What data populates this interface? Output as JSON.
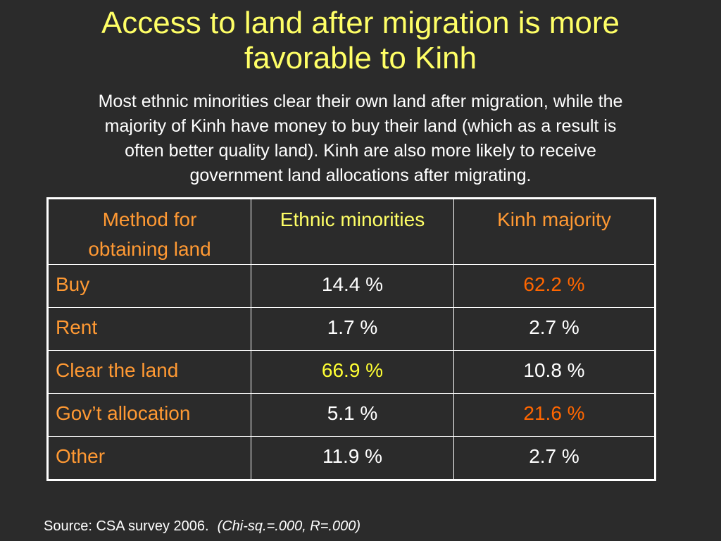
{
  "title": {
    "line1": "Access to land after migration is more",
    "line2": "favorable to Kinh"
  },
  "subtitle": {
    "line1": "Most ethnic minorities clear their own land after migration, while the",
    "line2": "majority of Kinh have money to buy their land (which as a result is",
    "line3": "often better quality land).  Kinh are also more likely to receive",
    "line4": "government land allocations after migrating."
  },
  "table": {
    "headers": {
      "method_line1": "Method for",
      "method_line2": "obtaining land",
      "ethnic": "Ethnic minorities",
      "kinh": "Kinh majority"
    },
    "rows": [
      {
        "method": "Buy",
        "ethnic": "14.4 %",
        "kinh": "62.2 %"
      },
      {
        "method": "Rent",
        "ethnic": "1.7 %",
        "kinh": "2.7 %"
      },
      {
        "method": "Clear the land",
        "ethnic": "66.9 %",
        "kinh": "10.8 %"
      },
      {
        "method": "Gov’t allocation",
        "ethnic": "5.1 %",
        "kinh": "21.6 %"
      },
      {
        "method": "Other",
        "ethnic": "11.9 %",
        "kinh": "2.7 %"
      }
    ]
  },
  "source": {
    "text": "Source: CSA survey 2006.",
    "stats": "(Chi-sq.=.000, R=.000)"
  },
  "colors": {
    "background": "#2b2b2b",
    "title": "#ffff66",
    "label_orange": "#ff9933",
    "highlight_orange": "#ff6600",
    "highlight_yellow": "#ffff33"
  }
}
